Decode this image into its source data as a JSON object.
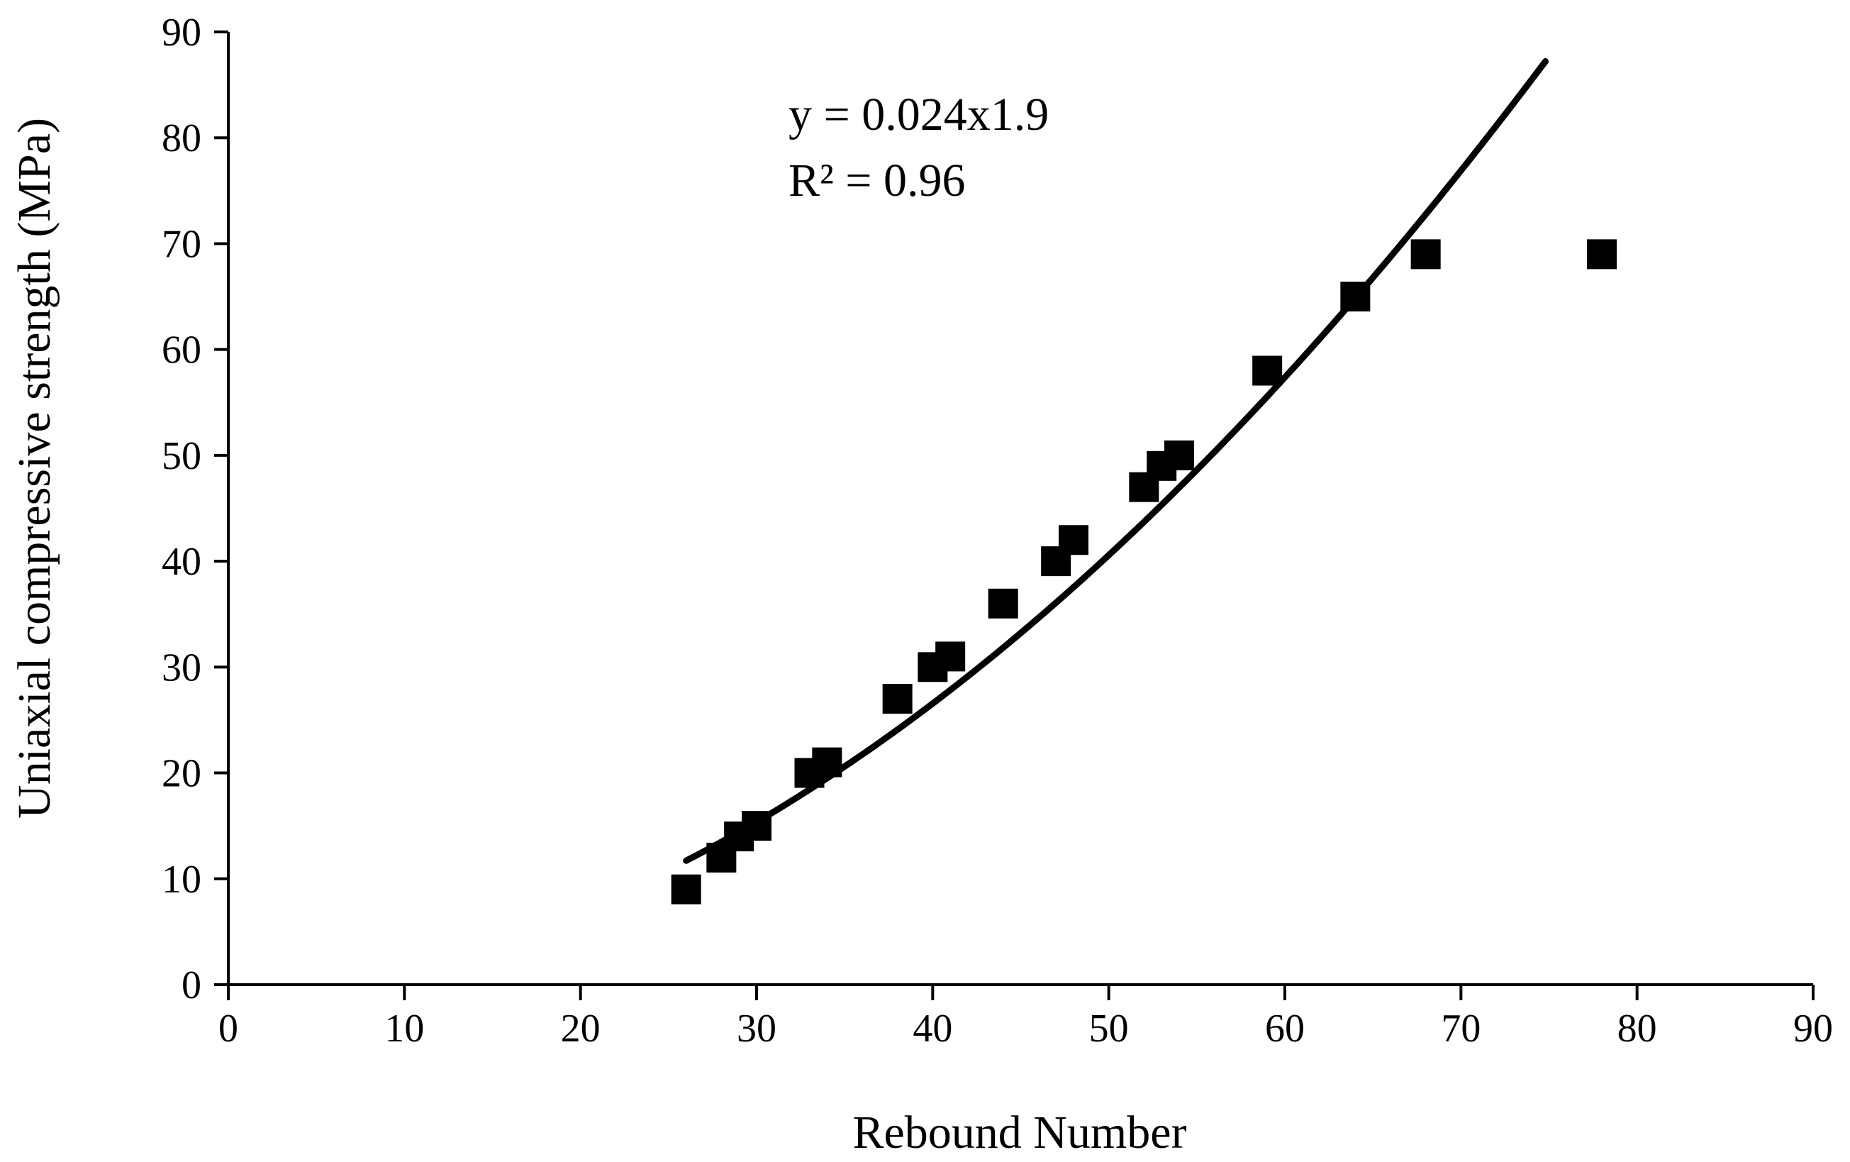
{
  "chart_data": {
    "type": "scatter",
    "xlabel": "Rebound Number",
    "ylabel": "Uniaxial compressive strength (MPa)",
    "xlim": [
      0,
      90
    ],
    "ylim": [
      0,
      90
    ],
    "xticks": [
      "0",
      "10",
      "20",
      "30",
      "40",
      "50",
      "60",
      "70",
      "80",
      "90"
    ],
    "yticks": [
      "0",
      "10",
      "20",
      "30",
      "40",
      "50",
      "60",
      "70",
      "80",
      "90"
    ],
    "grid": false,
    "marker": "square",
    "points": [
      {
        "x": 26,
        "y": 9
      },
      {
        "x": 28,
        "y": 12
      },
      {
        "x": 29,
        "y": 14
      },
      {
        "x": 30,
        "y": 15
      },
      {
        "x": 33,
        "y": 20
      },
      {
        "x": 34,
        "y": 21
      },
      {
        "x": 38,
        "y": 27
      },
      {
        "x": 40,
        "y": 30
      },
      {
        "x": 41,
        "y": 31
      },
      {
        "x": 44,
        "y": 36
      },
      {
        "x": 47,
        "y": 40
      },
      {
        "x": 48,
        "y": 42
      },
      {
        "x": 52,
        "y": 47
      },
      {
        "x": 53,
        "y": 49
      },
      {
        "x": 54,
        "y": 50
      },
      {
        "x": 59,
        "y": 58
      },
      {
        "x": 64,
        "y": 65
      },
      {
        "x": 68,
        "y": 69
      },
      {
        "x": 78,
        "y": 69
      }
    ],
    "trendline": {
      "type": "power",
      "a": 0.024,
      "b": 1.9,
      "x_range": [
        26,
        74.8
      ],
      "equation": "y = 0.024x1.9",
      "r2": "R² = 0.96"
    }
  }
}
